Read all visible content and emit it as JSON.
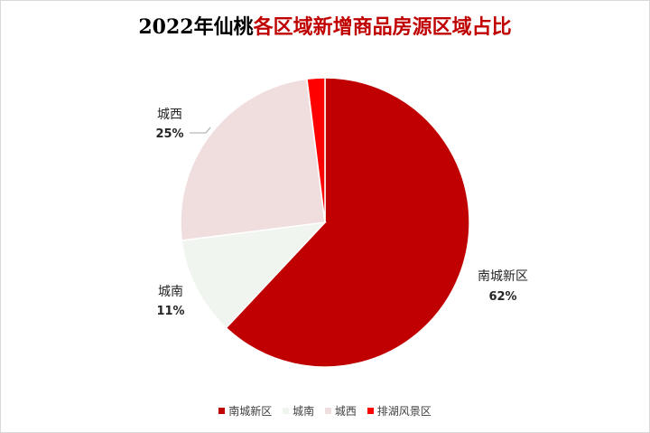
{
  "chart_data": {
    "type": "pie",
    "title_prefix": "2022年仙桃",
    "title_accent": "各区域新增商品房源区域占比",
    "categories": [
      "南城新区",
      "城南",
      "城西",
      "排湖风景区"
    ],
    "values": [
      62,
      11,
      25,
      2
    ],
    "data_labels": [
      {
        "name": "南城新区",
        "pct": "62%"
      },
      {
        "name": "城南",
        "pct": "11%"
      },
      {
        "name": "城西",
        "pct": "25%"
      },
      {
        "name": "",
        "pct": ""
      }
    ],
    "colors": [
      "#c00000",
      "#f0f5ef",
      "#f0dede",
      "#ff0000"
    ],
    "legend_position": "bottom"
  }
}
